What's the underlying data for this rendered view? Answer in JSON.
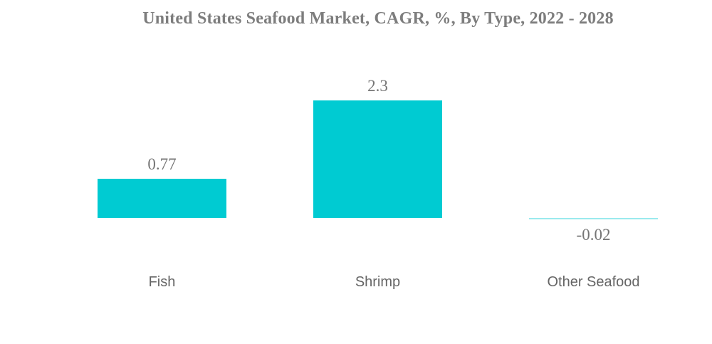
{
  "title": "United States Seafood Market, CAGR, %, By Type, 2022 - 2028",
  "colors": {
    "background": "#FFFFFF",
    "bar": "#00CBD2",
    "negative_bar": "#9AEAEE",
    "title_text": "#7D7D7D",
    "value_label_text": "#757575",
    "category_label_text": "#656565"
  },
  "chart_data": {
    "type": "bar",
    "title": "United States Seafood Market, CAGR, %, By Type, 2022 - 2028",
    "categories": [
      "Fish",
      "Shrimp",
      "Other Seafood"
    ],
    "values": [
      0.77,
      2.3,
      -0.02
    ],
    "value_labels": [
      "0.77",
      "2.3",
      "-0.02"
    ],
    "series_name": "CAGR %",
    "xlabel": "",
    "ylabel": "",
    "ylim": [
      -0.1,
      2.5
    ],
    "grid": false,
    "legend": false,
    "axes_visible": false,
    "data_labels": "outside-end"
  }
}
